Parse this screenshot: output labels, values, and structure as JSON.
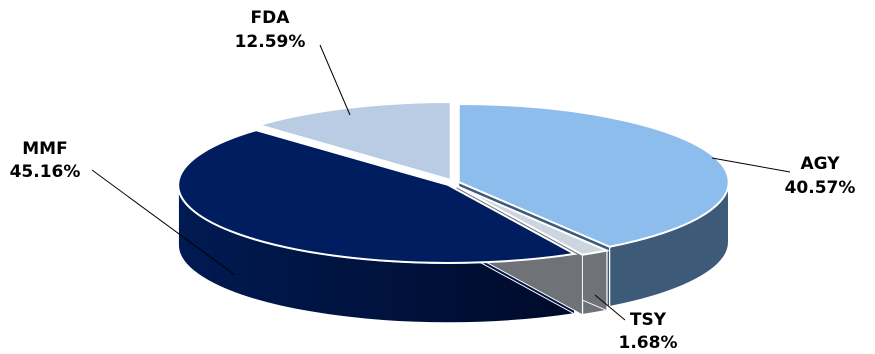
{
  "chart_data": {
    "type": "pie",
    "style": "3d-exploded",
    "title": "",
    "legend": "none",
    "series": [
      {
        "name": "AGY",
        "value": 40.57,
        "label": "40.57%",
        "color": "#8DBDEC",
        "side_color": "#3D5A78"
      },
      {
        "name": "TSY",
        "value": 1.68,
        "label": "1.68%",
        "color": "#CDD5DE",
        "side_color": "#6F7378"
      },
      {
        "name": "MMF",
        "value": 45.16,
        "label": "45.16%",
        "color": "#001E5F",
        "side_color": "#001548"
      },
      {
        "name": "FDA",
        "value": 12.59,
        "label": "12.59%",
        "color": "#B9CCE4",
        "side_color": "#7D8CA0"
      }
    ]
  }
}
